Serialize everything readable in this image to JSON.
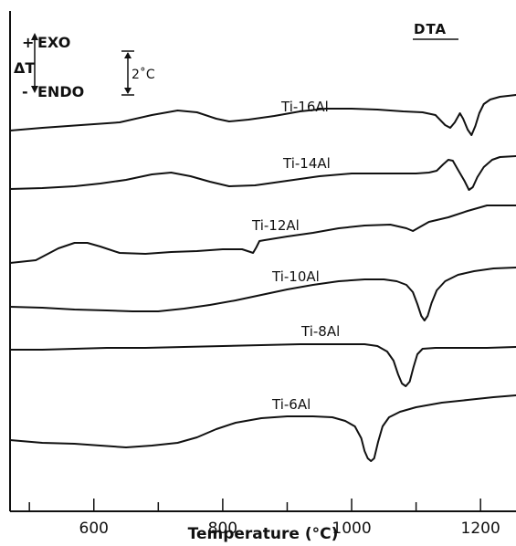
{
  "chart_data": {
    "type": "line",
    "title": "DTA",
    "xlabel": "Temperature (°C)",
    "ylabel": "",
    "xlim": [
      470,
      1255
    ],
    "x_ticks": [
      600,
      800,
      1000,
      1200
    ],
    "x_minor_ticks": [
      500,
      700,
      900,
      1100
    ],
    "tick_labels": [
      "600",
      "800",
      "1000",
      "1200"
    ],
    "legend": {
      "exo_label": "EXO",
      "endo_label": "ENDO",
      "plus": "+",
      "minus": "-",
      "delta_label": "ΔT",
      "scale_label": "2˚C"
    },
    "series": [
      {
        "name": "Ti-16Al",
        "offset": 0,
        "points": [
          [
            470,
            143
          ],
          [
            520,
            140
          ],
          [
            580,
            137
          ],
          [
            640,
            134
          ],
          [
            690,
            126
          ],
          [
            730,
            121
          ],
          [
            760,
            123
          ],
          [
            790,
            130
          ],
          [
            810,
            133
          ],
          [
            840,
            131
          ],
          [
            880,
            127
          ],
          [
            920,
            122
          ],
          [
            960,
            119
          ],
          [
            1000,
            119
          ],
          [
            1040,
            120
          ],
          [
            1080,
            122
          ],
          [
            1110,
            123
          ],
          [
            1130,
            126
          ],
          [
            1145,
            137
          ],
          [
            1153,
            140
          ],
          [
            1160,
            134
          ],
          [
            1168,
            124
          ],
          [
            1173,
            130
          ],
          [
            1180,
            142
          ],
          [
            1186,
            148
          ],
          [
            1192,
            138
          ],
          [
            1198,
            124
          ],
          [
            1205,
            114
          ],
          [
            1215,
            109
          ],
          [
            1230,
            106
          ],
          [
            1255,
            104
          ]
        ]
      },
      {
        "name": "Ti-14Al",
        "offset": 0,
        "points": [
          [
            470,
            207
          ],
          [
            520,
            206
          ],
          [
            570,
            204
          ],
          [
            610,
            201
          ],
          [
            650,
            197
          ],
          [
            690,
            191
          ],
          [
            720,
            189
          ],
          [
            750,
            193
          ],
          [
            780,
            199
          ],
          [
            810,
            204
          ],
          [
            850,
            203
          ],
          [
            900,
            198
          ],
          [
            950,
            193
          ],
          [
            1000,
            190
          ],
          [
            1050,
            190
          ],
          [
            1100,
            190
          ],
          [
            1120,
            189
          ],
          [
            1132,
            187
          ],
          [
            1142,
            180
          ],
          [
            1150,
            175
          ],
          [
            1157,
            176
          ],
          [
            1165,
            186
          ],
          [
            1175,
            198
          ],
          [
            1182,
            208
          ],
          [
            1188,
            205
          ],
          [
            1195,
            194
          ],
          [
            1205,
            183
          ],
          [
            1218,
            175
          ],
          [
            1230,
            172
          ],
          [
            1255,
            171
          ]
        ]
      },
      {
        "name": "Ti-12Al",
        "offset": 0,
        "points": [
          [
            470,
            288
          ],
          [
            510,
            285
          ],
          [
            545,
            272
          ],
          [
            570,
            266
          ],
          [
            590,
            266
          ],
          [
            610,
            270
          ],
          [
            640,
            277
          ],
          [
            680,
            278
          ],
          [
            720,
            276
          ],
          [
            760,
            275
          ],
          [
            800,
            273
          ],
          [
            830,
            273
          ],
          [
            843,
            276
          ],
          [
            847,
            277
          ],
          [
            852,
            271
          ],
          [
            857,
            264
          ],
          [
            865,
            263
          ],
          [
            900,
            259
          ],
          [
            940,
            255
          ],
          [
            980,
            250
          ],
          [
            1020,
            247
          ],
          [
            1060,
            246
          ],
          [
            1085,
            250
          ],
          [
            1095,
            253
          ],
          [
            1105,
            249
          ],
          [
            1120,
            243
          ],
          [
            1150,
            238
          ],
          [
            1180,
            231
          ],
          [
            1210,
            225
          ],
          [
            1235,
            225
          ],
          [
            1255,
            225
          ]
        ]
      },
      {
        "name": "Ti-10Al",
        "offset": 0,
        "points": [
          [
            470,
            336
          ],
          [
            520,
            337
          ],
          [
            570,
            339
          ],
          [
            620,
            340
          ],
          [
            660,
            341
          ],
          [
            700,
            341
          ],
          [
            740,
            338
          ],
          [
            780,
            334
          ],
          [
            820,
            329
          ],
          [
            860,
            323
          ],
          [
            900,
            317
          ],
          [
            940,
            312
          ],
          [
            980,
            308
          ],
          [
            1020,
            306
          ],
          [
            1050,
            306
          ],
          [
            1070,
            308
          ],
          [
            1085,
            312
          ],
          [
            1095,
            320
          ],
          [
            1102,
            333
          ],
          [
            1108,
            346
          ],
          [
            1113,
            351
          ],
          [
            1118,
            346
          ],
          [
            1124,
            332
          ],
          [
            1132,
            318
          ],
          [
            1145,
            308
          ],
          [
            1165,
            301
          ],
          [
            1190,
            297
          ],
          [
            1220,
            294
          ],
          [
            1255,
            293
          ]
        ]
      },
      {
        "name": "Ti-8Al",
        "offset": 0,
        "points": [
          [
            470,
            383
          ],
          [
            520,
            383
          ],
          [
            570,
            382
          ],
          [
            620,
            381
          ],
          [
            680,
            381
          ],
          [
            740,
            380
          ],
          [
            800,
            379
          ],
          [
            860,
            378
          ],
          [
            920,
            377
          ],
          [
            980,
            377
          ],
          [
            1020,
            377
          ],
          [
            1040,
            379
          ],
          [
            1055,
            385
          ],
          [
            1065,
            395
          ],
          [
            1072,
            410
          ],
          [
            1078,
            420
          ],
          [
            1084,
            423
          ],
          [
            1090,
            418
          ],
          [
            1096,
            402
          ],
          [
            1102,
            388
          ],
          [
            1110,
            382
          ],
          [
            1130,
            381
          ],
          [
            1170,
            381
          ],
          [
            1210,
            381
          ],
          [
            1255,
            380
          ]
        ]
      },
      {
        "name": "Ti-6Al",
        "offset": 0,
        "points": [
          [
            470,
            482
          ],
          [
            520,
            485
          ],
          [
            570,
            486
          ],
          [
            610,
            488
          ],
          [
            650,
            490
          ],
          [
            690,
            488
          ],
          [
            730,
            485
          ],
          [
            760,
            479
          ],
          [
            790,
            470
          ],
          [
            820,
            463
          ],
          [
            860,
            458
          ],
          [
            900,
            456
          ],
          [
            940,
            456
          ],
          [
            970,
            457
          ],
          [
            990,
            461
          ],
          [
            1005,
            467
          ],
          [
            1015,
            480
          ],
          [
            1020,
            494
          ],
          [
            1025,
            502
          ],
          [
            1030,
            505
          ],
          [
            1035,
            502
          ],
          [
            1041,
            484
          ],
          [
            1048,
            467
          ],
          [
            1058,
            457
          ],
          [
            1075,
            451
          ],
          [
            1100,
            446
          ],
          [
            1140,
            441
          ],
          [
            1180,
            438
          ],
          [
            1220,
            435
          ],
          [
            1255,
            433
          ]
        ]
      }
    ]
  }
}
